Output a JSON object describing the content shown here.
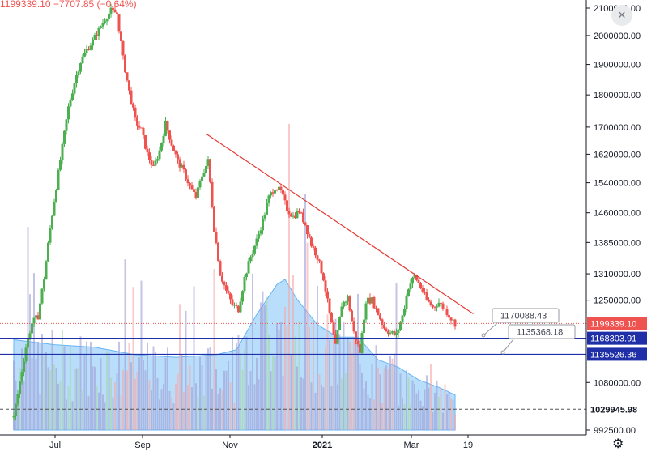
{
  "legend": {
    "text": "1199339.10 −7707.85 (−0.64%)"
  },
  "icons": {
    "settings": "gear-icon",
    "chart_close": "close-icon"
  },
  "colors": {
    "up": "#26a69a",
    "down": "#ef5350",
    "up_light": "#4caf50",
    "trendline": "#e53935",
    "support_line": "#1e2fa8",
    "last_price_line": "#ef5350",
    "volume_area": "#64b5f6",
    "volume_bar": "#9c9cd6"
  },
  "chart_data": {
    "type": "candlestick",
    "y_axis": {
      "scale": "log",
      "ticks": [
        "2100000.00",
        "2000000.00",
        "1900000.00",
        "1800000.00",
        "1700000.00",
        "1620000.00",
        "1540000.00",
        "1460000.00",
        "1385000.00",
        "1310000.00",
        "1250000.00",
        "1080000.00",
        "992500.00"
      ]
    },
    "x_axis": {
      "ticks": [
        {
          "label": "Jul",
          "bold": false
        },
        {
          "label": "Sep",
          "bold": false
        },
        {
          "label": "Nov",
          "bold": false
        },
        {
          "label": "2021",
          "bold": true
        },
        {
          "label": "Mar",
          "bold": false
        },
        {
          "label": "19",
          "bold": false
        }
      ]
    },
    "price_labels": [
      {
        "value": "1199339.10",
        "kind": "last"
      },
      {
        "value": "1168303.91",
        "kind": "level"
      },
      {
        "value": "1135526.36",
        "kind": "level"
      },
      {
        "value": "1029945.98",
        "kind": "dark"
      }
    ],
    "horizontal_lines": [
      1168303.91,
      1135526.36
    ],
    "callouts": [
      "1170088.43",
      "1135368.18"
    ],
    "trendline": {
      "from": {
        "index": 95,
        "value": 1680000
      },
      "to": {
        "index": 227,
        "value": 1220000
      }
    },
    "ohlc_path": [
      [
        0,
        1015000
      ],
      [
        3,
        1080000
      ],
      [
        6,
        1150000
      ],
      [
        9,
        1200000
      ],
      [
        12,
        1215000
      ],
      [
        15,
        1300000
      ],
      [
        18,
        1420000
      ],
      [
        21,
        1530000
      ],
      [
        24,
        1640000
      ],
      [
        27,
        1760000
      ],
      [
        30,
        1840000
      ],
      [
        33,
        1910000
      ],
      [
        36,
        1950000
      ],
      [
        39,
        1980000
      ],
      [
        42,
        2020000
      ],
      [
        45,
        2060000
      ],
      [
        48,
        2090000
      ],
      [
        51,
        2080000
      ],
      [
        54,
        1920000
      ],
      [
        57,
        1810000
      ],
      [
        60,
        1720000
      ],
      [
        63,
        1690000
      ],
      [
        66,
        1620000
      ],
      [
        69,
        1580000
      ],
      [
        72,
        1630000
      ],
      [
        75,
        1710000
      ],
      [
        78,
        1650000
      ],
      [
        81,
        1600000
      ],
      [
        84,
        1570000
      ],
      [
        87,
        1530000
      ],
      [
        90,
        1500000
      ],
      [
        93,
        1560000
      ],
      [
        96,
        1600000
      ],
      [
        99,
        1420000
      ],
      [
        102,
        1310000
      ],
      [
        105,
        1270000
      ],
      [
        108,
        1240000
      ],
      [
        111,
        1230000
      ],
      [
        114,
        1300000
      ],
      [
        117,
        1350000
      ],
      [
        120,
        1390000
      ],
      [
        123,
        1440000
      ],
      [
        126,
        1500000
      ],
      [
        129,
        1530000
      ],
      [
        132,
        1515000
      ],
      [
        135,
        1470000
      ],
      [
        138,
        1450000
      ],
      [
        141,
        1465000
      ],
      [
        144,
        1430000
      ],
      [
        147,
        1380000
      ],
      [
        150,
        1350000
      ],
      [
        153,
        1300000
      ],
      [
        156,
        1220000
      ],
      [
        159,
        1150000
      ],
      [
        162,
        1240000
      ],
      [
        165,
        1255000
      ],
      [
        168,
        1180000
      ],
      [
        171,
        1140000
      ],
      [
        174,
        1250000
      ],
      [
        177,
        1250000
      ],
      [
        180,
        1220000
      ],
      [
        183,
        1190000
      ],
      [
        186,
        1180000
      ],
      [
        189,
        1175000
      ],
      [
        192,
        1215000
      ],
      [
        195,
        1280000
      ],
      [
        198,
        1305000
      ],
      [
        201,
        1280000
      ],
      [
        204,
        1250000
      ],
      [
        207,
        1235000
      ],
      [
        210,
        1245000
      ],
      [
        213,
        1230000
      ],
      [
        216,
        1210000
      ],
      [
        218,
        1199339
      ]
    ],
    "volume_ma": [
      [
        0,
        0.36
      ],
      [
        20,
        0.34
      ],
      [
        40,
        0.33
      ],
      [
        60,
        0.3
      ],
      [
        80,
        0.29
      ],
      [
        100,
        0.3
      ],
      [
        110,
        0.32
      ],
      [
        120,
        0.46
      ],
      [
        130,
        0.58
      ],
      [
        134,
        0.6
      ],
      [
        140,
        0.52
      ],
      [
        150,
        0.42
      ],
      [
        160,
        0.37
      ],
      [
        170,
        0.37
      ],
      [
        180,
        0.28
      ],
      [
        190,
        0.25
      ],
      [
        200,
        0.2
      ],
      [
        210,
        0.17
      ],
      [
        218,
        0.14
      ]
    ]
  }
}
